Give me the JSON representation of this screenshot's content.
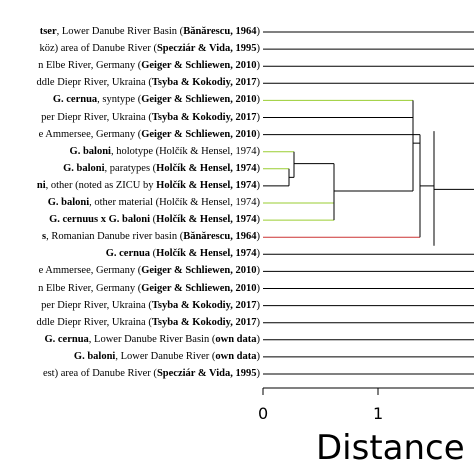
{
  "leaves": [
    {
      "segments": [
        {
          "t": "tser",
          "b": true
        },
        {
          "t": ", Lower Danube River Basin ("
        },
        {
          "t": "Bănărescu, 1964",
          "b": true
        },
        {
          "t": ")"
        }
      ],
      "color": "#000000"
    },
    {
      "segments": [
        {
          "t": "köz) area of Danube River ("
        },
        {
          "t": "Specziár & Vida, 1995",
          "b": true
        },
        {
          "t": ")"
        }
      ],
      "color": "#000000"
    },
    {
      "segments": [
        {
          "t": "n Elbe River, Germany ("
        },
        {
          "t": "Geiger & Schliewen, 2010",
          "b": true
        },
        {
          "t": ")"
        }
      ],
      "color": "#000000"
    },
    {
      "segments": [
        {
          "t": "ddle Diepr River, Ukraina ("
        },
        {
          "t": "Tsyba & Kokodiy, 2017",
          "b": true
        },
        {
          "t": ")"
        }
      ],
      "color": "#000000"
    },
    {
      "segments": [
        {
          "t": "G. cernua",
          "b": true
        },
        {
          "t": ", syntype ("
        },
        {
          "t": "Geiger & Schliewen, 2010",
          "b": true
        },
        {
          "t": ")"
        }
      ],
      "color": "#9acd32"
    },
    {
      "segments": [
        {
          "t": "per Diepr River, Ukraina ("
        },
        {
          "t": "Tsyba & Kokodiy, 2017",
          "b": true
        },
        {
          "t": ")"
        }
      ],
      "color": "#000000"
    },
    {
      "segments": [
        {
          "t": "e Ammersee, Germany ("
        },
        {
          "t": "Geiger & Schliewen, 2010",
          "b": true
        },
        {
          "t": ")"
        }
      ],
      "color": "#000000"
    },
    {
      "segments": [
        {
          "t": "G. baloni",
          "b": true
        },
        {
          "t": ", holotype (Holčík & Hensel, 1974)"
        }
      ],
      "color": "#9acd32"
    },
    {
      "segments": [
        {
          "t": "G. baloni",
          "b": true
        },
        {
          "t": ", paratypes ("
        },
        {
          "t": "Holčík & Hensel, 1974",
          "b": true
        },
        {
          "t": ")"
        }
      ],
      "color": "#9acd32"
    },
    {
      "segments": [
        {
          "t": "ni",
          "b": true
        },
        {
          "t": ", other (noted as ZICU by "
        },
        {
          "t": "Holčík & Hensel, 1974",
          "b": true
        },
        {
          "t": ")"
        }
      ],
      "color": "#000000"
    },
    {
      "segments": [
        {
          "t": "G. baloni",
          "b": true
        },
        {
          "t": ", other material (Holčík & Hensel, 1974)"
        }
      ],
      "color": "#9acd32"
    },
    {
      "segments": [
        {
          "t": "G. cernuus x G. baloni",
          "b": true
        },
        {
          "t": " ("
        },
        {
          "t": "Holčík & Hensel, 1974",
          "b": true
        },
        {
          "t": ")"
        }
      ],
      "color": "#9acd32"
    },
    {
      "segments": [
        {
          "t": "s",
          "b": true
        },
        {
          "t": ", Romanian Danube river basin ("
        },
        {
          "t": "Bănărescu, 1964",
          "b": true
        },
        {
          "t": ")"
        }
      ],
      "color": "#cc3333"
    },
    {
      "segments": [
        {
          "t": "G. cernua",
          "b": true
        },
        {
          "t": " ("
        },
        {
          "t": "Holčík & Hensel, 1974",
          "b": true
        },
        {
          "t": ")"
        }
      ],
      "color": "#000000"
    },
    {
      "segments": [
        {
          "t": "e Ammersee, Germany ("
        },
        {
          "t": "Geiger & Schliewen, 2010",
          "b": true
        },
        {
          "t": ")"
        }
      ],
      "color": "#000000"
    },
    {
      "segments": [
        {
          "t": "n Elbe River, Germany ("
        },
        {
          "t": "Geiger & Schliewen, 2010",
          "b": true
        },
        {
          "t": ")"
        }
      ],
      "color": "#000000"
    },
    {
      "segments": [
        {
          "t": "per Diepr River, Ukraina ("
        },
        {
          "t": "Tsyba & Kokodiy, 2017",
          "b": true
        },
        {
          "t": ")"
        }
      ],
      "color": "#000000"
    },
    {
      "segments": [
        {
          "t": "ddle Diepr River, Ukraina ("
        },
        {
          "t": "Tsyba & Kokodiy, 2017",
          "b": true
        },
        {
          "t": ")"
        }
      ],
      "color": "#000000"
    },
    {
      "segments": [
        {
          "t": "G. cernua",
          "b": true
        },
        {
          "t": ", Lower Danube River Basin ("
        },
        {
          "t": "own data",
          "b": true
        },
        {
          "t": ")"
        }
      ],
      "color": "#000000"
    },
    {
      "segments": [
        {
          "t": "G. baloni",
          "b": true
        },
        {
          "t": ", Lower Danube River ("
        },
        {
          "t": "own data",
          "b": true
        },
        {
          "t": ")"
        }
      ],
      "color": "#000000"
    },
    {
      "segments": [
        {
          "t": "est) area of Danube River ("
        },
        {
          "t": "Specziár & Vida, 1995",
          "b": true
        },
        {
          "t": ")"
        }
      ],
      "color": "#000000"
    }
  ],
  "axis": {
    "title": "Distance",
    "ticks": [
      "0",
      "1"
    ]
  }
}
